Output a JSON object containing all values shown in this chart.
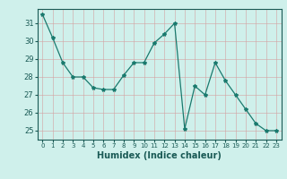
{
  "x": [
    0,
    1,
    2,
    3,
    4,
    5,
    6,
    7,
    8,
    9,
    10,
    11,
    12,
    13,
    14,
    15,
    16,
    17,
    18,
    19,
    20,
    21,
    22,
    23
  ],
  "y": [
    31.5,
    30.2,
    28.8,
    28.0,
    28.0,
    27.4,
    27.3,
    27.3,
    28.1,
    28.8,
    28.8,
    29.9,
    30.4,
    31.0,
    25.1,
    27.5,
    27.0,
    28.8,
    27.8,
    27.0,
    26.2,
    25.4,
    25.0,
    25.0
  ],
  "line_color": "#1a7a6e",
  "marker": "*",
  "marker_size": 3,
  "bg_color": "#cff0eb",
  "grid_color_major": "#b8ddd8",
  "grid_color_minor": "#dce8e6",
  "xlabel": "Humidex (Indice chaleur)",
  "ylim": [
    24.5,
    31.8
  ],
  "xlim": [
    -0.5,
    23.5
  ],
  "yticks": [
    25,
    26,
    27,
    28,
    29,
    30,
    31
  ],
  "xticks": [
    0,
    1,
    2,
    3,
    4,
    5,
    6,
    7,
    8,
    9,
    10,
    11,
    12,
    13,
    14,
    15,
    16,
    17,
    18,
    19,
    20,
    21,
    22,
    23
  ],
  "tick_color": "#1a5a55",
  "spine_color": "#1a5a55",
  "xlabel_fontsize": 7,
  "ytick_fontsize": 6,
  "xtick_fontsize": 5
}
